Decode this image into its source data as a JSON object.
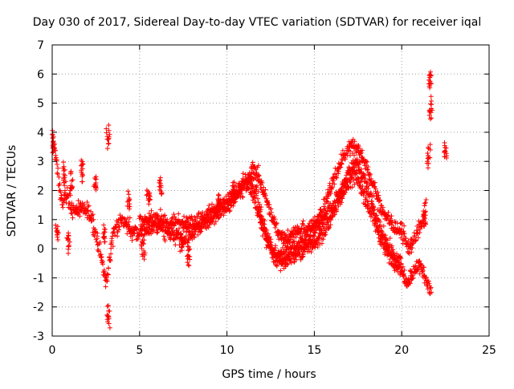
{
  "chart_data": {
    "type": "scatter",
    "title": "Day 030 of 2017, Sidereal Day-to-day VTEC variation (SDTVAR) for receiver iqal",
    "xlabel": "GPS time / hours",
    "ylabel": "SDTVAR / TECUs",
    "xlim": [
      0,
      25
    ],
    "ylim": [
      -3,
      7
    ],
    "x_ticks": [
      0,
      5,
      10,
      15,
      20,
      25
    ],
    "y_ticks": [
      -3,
      -2,
      -1,
      0,
      1,
      2,
      3,
      4,
      5,
      6,
      7
    ],
    "grid": true,
    "marker": "+",
    "series_color": "#ff0000",
    "series": [
      {
        "name": "SDTVAR",
        "bands": [
          [
            [
              0.0,
              3.7
            ],
            [
              0.1,
              3.6
            ],
            [
              0.2,
              3.2
            ],
            [
              0.3,
              2.6
            ],
            [
              0.45,
              2.0
            ],
            [
              0.6,
              1.5
            ],
            [
              0.8,
              1.9
            ],
            [
              1.0,
              1.6
            ],
            [
              1.2,
              1.3
            ],
            [
              1.5,
              1.4
            ],
            [
              1.8,
              1.2
            ],
            [
              2.0,
              1.4
            ],
            [
              2.3,
              1.0
            ],
            [
              2.6,
              0.3
            ],
            [
              2.9,
              -0.6
            ],
            [
              3.1,
              -1.2
            ],
            [
              3.25,
              -0.5
            ],
            [
              3.5,
              0.6
            ],
            [
              4.0,
              1.0
            ],
            [
              4.5,
              0.6
            ],
            [
              5.0,
              0.5
            ],
            [
              5.5,
              0.7
            ],
            [
              6.0,
              0.8
            ],
            [
              6.5,
              0.6
            ],
            [
              7.0,
              0.4
            ],
            [
              7.5,
              0.3
            ],
            [
              8.0,
              0.5
            ],
            [
              8.5,
              0.8
            ],
            [
              9.0,
              1.0
            ],
            [
              9.5,
              1.2
            ],
            [
              10.0,
              1.4
            ],
            [
              10.5,
              1.8
            ],
            [
              11.0,
              2.3
            ],
            [
              11.3,
              2.5
            ],
            [
              11.7,
              1.9
            ],
            [
              12.0,
              1.0
            ],
            [
              12.3,
              0.4
            ],
            [
              12.6,
              -0.2
            ],
            [
              13.0,
              -0.4
            ],
            [
              13.5,
              -0.4
            ],
            [
              14.0,
              -0.2
            ],
            [
              14.5,
              0.0
            ],
            [
              15.0,
              0.2
            ],
            [
              15.5,
              0.5
            ],
            [
              16.0,
              1.1
            ],
            [
              16.5,
              1.8
            ],
            [
              17.0,
              2.3
            ],
            [
              17.3,
              2.5
            ],
            [
              17.7,
              2.1
            ],
            [
              18.2,
              1.3
            ],
            [
              18.7,
              0.5
            ],
            [
              19.2,
              -0.2
            ],
            [
              19.6,
              -0.4
            ],
            [
              20.0,
              -0.7
            ],
            [
              20.3,
              -1.1
            ],
            [
              20.6,
              -0.8
            ],
            [
              21.0,
              -0.6
            ],
            [
              21.3,
              -0.9
            ],
            [
              21.5,
              -1.2
            ],
            [
              21.7,
              -1.5
            ]
          ],
          [
            [
              5.0,
              0.9
            ],
            [
              6.0,
              1.0
            ],
            [
              7.0,
              0.9
            ],
            [
              8.0,
              0.8
            ],
            [
              9.0,
              1.2
            ],
            [
              10.0,
              1.6
            ],
            [
              10.5,
              1.9
            ],
            [
              11.0,
              2.1
            ],
            [
              11.2,
              2.2
            ],
            [
              11.5,
              2.8
            ],
            [
              11.8,
              2.5
            ],
            [
              12.2,
              1.8
            ],
            [
              12.6,
              1.0
            ],
            [
              13.0,
              0.5
            ],
            [
              13.5,
              0.4
            ],
            [
              14.0,
              0.6
            ],
            [
              14.5,
              0.6
            ],
            [
              15.0,
              0.8
            ],
            [
              15.5,
              1.3
            ],
            [
              16.0,
              2.2
            ],
            [
              16.5,
              3.0
            ],
            [
              17.0,
              3.5
            ],
            [
              17.3,
              3.6
            ],
            [
              17.7,
              3.2
            ],
            [
              18.2,
              2.5
            ],
            [
              18.7,
              1.6
            ],
            [
              19.2,
              1.0
            ],
            [
              19.6,
              0.8
            ],
            [
              20.0,
              0.6
            ],
            [
              20.4,
              0.0
            ],
            [
              20.8,
              0.4
            ],
            [
              21.1,
              0.9
            ],
            [
              21.4,
              1.5
            ]
          ],
          [
            [
              11.3,
              2.1
            ],
            [
              11.6,
              1.6
            ],
            [
              12.0,
              0.8
            ],
            [
              12.5,
              0.1
            ],
            [
              13.0,
              -0.3
            ],
            [
              13.5,
              -0.1
            ],
            [
              14.0,
              0.1
            ],
            [
              14.5,
              0.3
            ],
            [
              15.0,
              0.6
            ],
            [
              15.5,
              1.0
            ],
            [
              16.0,
              1.4
            ],
            [
              16.5,
              1.9
            ],
            [
              17.0,
              2.7
            ],
            [
              17.3,
              3.0
            ],
            [
              17.7,
              2.6
            ],
            [
              18.2,
              1.8
            ],
            [
              18.7,
              0.8
            ],
            [
              19.2,
              0.1
            ],
            [
              19.6,
              -0.3
            ],
            [
              20.0,
              -0.5
            ]
          ]
        ],
        "clusters": [
          [
            0.05,
            3.7
          ],
          [
            0.3,
            0.5
          ],
          [
            0.7,
            2.5
          ],
          [
            1.1,
            2.3
          ],
          [
            1.7,
            2.7
          ],
          [
            2.5,
            2.3
          ],
          [
            3.0,
            0.4
          ],
          [
            3.2,
            3.9
          ],
          [
            3.2,
            -2.3
          ],
          [
            4.4,
            1.5
          ],
          [
            5.2,
            0.0
          ],
          [
            5.5,
            1.8
          ],
          [
            6.2,
            2.1
          ],
          [
            7.4,
            0.3
          ],
          [
            7.8,
            -0.3
          ],
          [
            9.5,
            1.6
          ],
          [
            10.4,
            2.1
          ],
          [
            21.55,
            3.2
          ],
          [
            21.65,
            4.8
          ],
          [
            21.65,
            5.8
          ],
          [
            22.5,
            3.4
          ],
          [
            21.3,
            1.0
          ],
          [
            0.9,
            0.3
          ]
        ]
      }
    ]
  }
}
